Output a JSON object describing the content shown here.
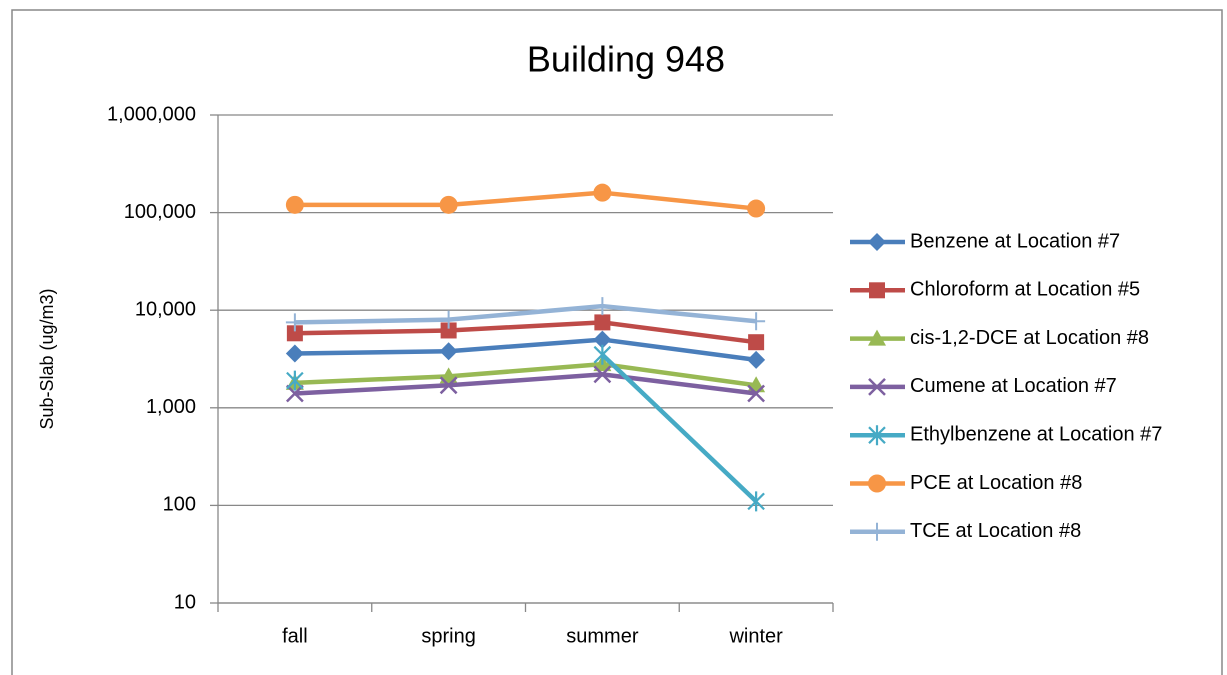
{
  "chart_data": {
    "type": "line",
    "title": "Building 948",
    "y_label": "Sub-Slab (ug/m3)",
    "categories": [
      "fall",
      "spring",
      "summer",
      "winter"
    ],
    "yscale": "log",
    "ylim": [
      10,
      1000000
    ],
    "yticks": [
      10,
      100,
      {
        "value": 1000,
        "label": "1,000"
      },
      {
        "value": 10000,
        "label": "10,000"
      },
      {
        "value": 100000,
        "label": "100,000"
      },
      {
        "value": 1000000,
        "label": "1,000,000"
      }
    ],
    "grid": true,
    "legend": "right",
    "series": [
      {
        "name": "Benzene at Location #7",
        "color": "#4a7ebb",
        "marker": "diamond",
        "values": [
          3600,
          3800,
          5000,
          3100
        ]
      },
      {
        "name": "Chloroform at Location #5",
        "color": "#be4b48",
        "marker": "square",
        "values": [
          5800,
          6200,
          7500,
          4700
        ]
      },
      {
        "name": "cis-1,2-DCE at Location #8",
        "color": "#98b954",
        "marker": "triangle",
        "values": [
          1800,
          2100,
          2800,
          1700
        ]
      },
      {
        "name": "Cumene at Location #7",
        "color": "#7d60a0",
        "marker": "x",
        "values": [
          1400,
          1700,
          2200,
          1400
        ]
      },
      {
        "name": "Ethylbenzene at Location #7",
        "color": "#46aac5",
        "marker": "star",
        "values": [
          1900,
          null,
          3500,
          110
        ]
      },
      {
        "name": "PCE at Location #8",
        "color": "#f79646",
        "marker": "circle",
        "values": [
          120000,
          120000,
          160000,
          110000
        ]
      },
      {
        "name": "TCE at Location #8",
        "color": "#94b3d6",
        "marker": "plus",
        "values": [
          7500,
          8000,
          11000,
          7700
        ]
      }
    ]
  }
}
